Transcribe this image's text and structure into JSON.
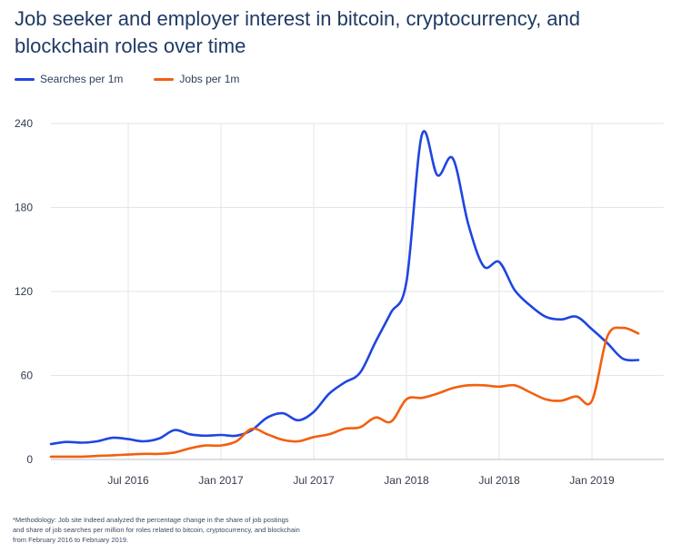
{
  "header": {
    "title": "Job seeker and employer interest in bitcoin, cryptocurrency, and blockchain roles over time"
  },
  "legend": {
    "items": [
      {
        "label": "Searches per 1m",
        "color": "#1f46e0"
      },
      {
        "label": "Jobs per 1m",
        "color": "#f2600f"
      }
    ]
  },
  "footnote": {
    "text": "*Methodology: Job site Indeed analyzed the percentage change in the share of job postings\nand share of job searches per million for roles related to bitcoin, cryptocurrency, and blockchain\nfrom February 2016 to February 2019."
  },
  "chart_data": {
    "type": "line",
    "x_tick_labels": [
      "Jul 2016",
      "Jan 2017",
      "Jul 2017",
      "Jan 2018",
      "Jul 2018",
      "Jan 2019"
    ],
    "y_tick_labels": [
      "0",
      "60",
      "120",
      "180",
      "240"
    ],
    "ylim": [
      0,
      240
    ],
    "grid": true,
    "legend_position": "top-left",
    "x_unit": "months",
    "series": [
      {
        "name": "Searches per 1m",
        "color": "#1f46e0",
        "points": [
          [
            "2016-02",
            11
          ],
          [
            "2016-03",
            12.5
          ],
          [
            "2016-04",
            12
          ],
          [
            "2016-05",
            13
          ],
          [
            "2016-06",
            15.5
          ],
          [
            "2016-07",
            14.5
          ],
          [
            "2016-08",
            13
          ],
          [
            "2016-09",
            15
          ],
          [
            "2016-10",
            21
          ],
          [
            "2016-11",
            18
          ],
          [
            "2016-12",
            17
          ],
          [
            "2017-01",
            17.5
          ],
          [
            "2017-02",
            17
          ],
          [
            "2017-03",
            21
          ],
          [
            "2017-04",
            30
          ],
          [
            "2017-05",
            33
          ],
          [
            "2017-06",
            28
          ],
          [
            "2017-07",
            34
          ],
          [
            "2017-08",
            47
          ],
          [
            "2017-09",
            55
          ],
          [
            "2017-10",
            62
          ],
          [
            "2017-11",
            84
          ],
          [
            "2017-12",
            105
          ],
          [
            "2018-01",
            127
          ],
          [
            "2018-02",
            232
          ],
          [
            "2018-03",
            203
          ],
          [
            "2018-04",
            215
          ],
          [
            "2018-05",
            168
          ],
          [
            "2018-06",
            138
          ],
          [
            "2018-07",
            141
          ],
          [
            "2018-08",
            121
          ],
          [
            "2018-09",
            110
          ],
          [
            "2018-10",
            102
          ],
          [
            "2018-11",
            100
          ],
          [
            "2018-12",
            102
          ],
          [
            "2019-01",
            93
          ],
          [
            "2019-02",
            83
          ],
          [
            "2019-03",
            72
          ],
          [
            "2019-04",
            71
          ]
        ]
      },
      {
        "name": "Jobs per 1m",
        "color": "#f2600f",
        "points": [
          [
            "2016-02",
            2
          ],
          [
            "2016-03",
            2
          ],
          [
            "2016-04",
            2
          ],
          [
            "2016-05",
            2.5
          ],
          [
            "2016-06",
            3
          ],
          [
            "2016-07",
            3.5
          ],
          [
            "2016-08",
            4
          ],
          [
            "2016-09",
            4
          ],
          [
            "2016-10",
            5
          ],
          [
            "2016-11",
            8
          ],
          [
            "2016-12",
            10
          ],
          [
            "2017-01",
            10
          ],
          [
            "2017-02",
            13
          ],
          [
            "2017-03",
            22
          ],
          [
            "2017-04",
            18
          ],
          [
            "2017-05",
            14
          ],
          [
            "2017-06",
            13
          ],
          [
            "2017-07",
            16
          ],
          [
            "2017-08",
            18
          ],
          [
            "2017-09",
            22
          ],
          [
            "2017-10",
            23
          ],
          [
            "2017-11",
            30
          ],
          [
            "2017-12",
            27
          ],
          [
            "2018-01",
            43
          ],
          [
            "2018-02",
            44
          ],
          [
            "2018-03",
            47
          ],
          [
            "2018-04",
            51
          ],
          [
            "2018-05",
            53
          ],
          [
            "2018-06",
            53
          ],
          [
            "2018-07",
            52
          ],
          [
            "2018-08",
            53
          ],
          [
            "2018-09",
            48
          ],
          [
            "2018-10",
            43
          ],
          [
            "2018-11",
            42
          ],
          [
            "2018-12",
            45
          ],
          [
            "2019-01",
            42
          ],
          [
            "2019-02",
            88
          ],
          [
            "2019-03",
            94
          ],
          [
            "2019-04",
            90
          ]
        ]
      }
    ]
  }
}
